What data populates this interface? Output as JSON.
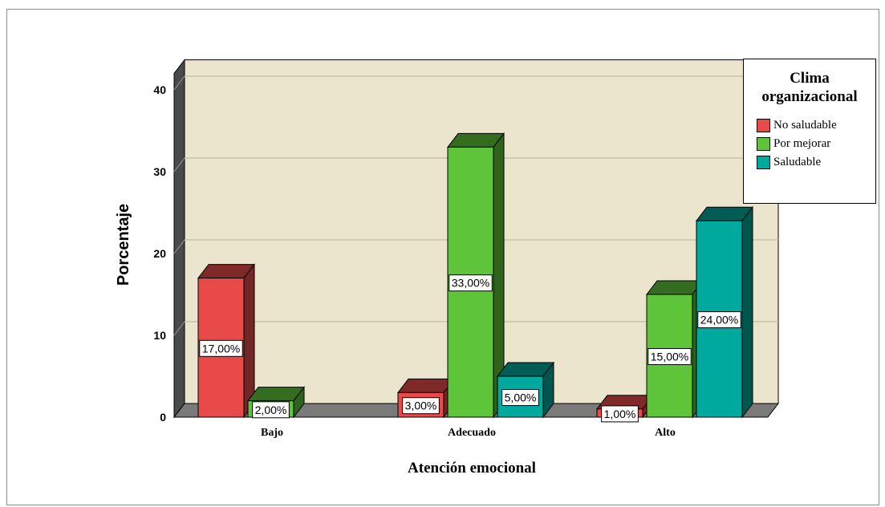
{
  "chart_data": {
    "type": "bar",
    "xlabel": "Atención emocional",
    "ylabel": "Porcentaje",
    "ylim": [
      0,
      42
    ],
    "yticks": [
      "0",
      "10",
      "20",
      "30",
      "40"
    ],
    "categories": [
      "Bajo",
      "Adecuado",
      "Alto"
    ],
    "legend_title": "Clima organizacional",
    "legend_title_lines": [
      "Clima",
      "organizacional"
    ],
    "legend_position": "top-right",
    "grid": true,
    "series": [
      {
        "name": "No saludable",
        "color": "#e84a4a",
        "values": [
          17,
          3,
          1
        ],
        "labels": [
          "17,00%",
          "3,00%",
          "1,00%"
        ]
      },
      {
        "name": "Por mejorar",
        "color": "#5ec43a",
        "values": [
          2,
          33,
          15
        ],
        "labels": [
          "2,00%",
          "33,00%",
          "15,00%"
        ]
      },
      {
        "name": "Saludable",
        "color": "#00a99d",
        "values": [
          null,
          5,
          24
        ],
        "labels": [
          "",
          "5,00%",
          "24,00%"
        ]
      }
    ]
  }
}
